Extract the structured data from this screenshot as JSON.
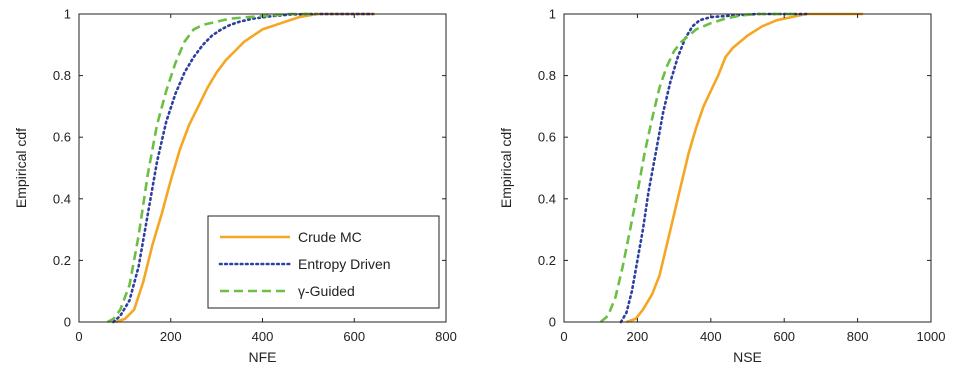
{
  "chart_data": [
    {
      "type": "line",
      "xlabel": "NFE",
      "ylabel": "Empirical cdf",
      "xlim": [
        0,
        800
      ],
      "ylim": [
        0,
        1
      ],
      "xticks": [
        0,
        200,
        400,
        600,
        800
      ],
      "yticks": [
        0,
        0.2,
        0.4,
        0.6,
        0.8,
        1
      ],
      "xtick_labels": [
        "0",
        "200",
        "400",
        "600",
        "800"
      ],
      "ytick_labels": [
        "0",
        "0.2",
        "0.4",
        "0.6",
        "0.8",
        "1"
      ],
      "grid": false,
      "legend_position": "bottom-right",
      "series": [
        {
          "name": "Crude MC",
          "color": "#f5a623",
          "dash": "solid",
          "points": [
            [
              80,
              0
            ],
            [
              100,
              0.01
            ],
            [
              120,
              0.04
            ],
            [
              140,
              0.13
            ],
            [
              160,
              0.25
            ],
            [
              180,
              0.35
            ],
            [
              200,
              0.46
            ],
            [
              220,
              0.56
            ],
            [
              240,
              0.64
            ],
            [
              260,
              0.7
            ],
            [
              280,
              0.76
            ],
            [
              300,
              0.81
            ],
            [
              320,
              0.85
            ],
            [
              340,
              0.88
            ],
            [
              360,
              0.91
            ],
            [
              380,
              0.93
            ],
            [
              400,
              0.95
            ],
            [
              440,
              0.97
            ],
            [
              480,
              0.99
            ],
            [
              520,
              1.0
            ],
            [
              645,
              1.0
            ]
          ]
        },
        {
          "name": "Entropy Driven",
          "color": "#2e3f9e",
          "dash": "dotted",
          "points": [
            [
              75,
              0
            ],
            [
              90,
              0.02
            ],
            [
              110,
              0.07
            ],
            [
              130,
              0.18
            ],
            [
              150,
              0.35
            ],
            [
              170,
              0.52
            ],
            [
              190,
              0.65
            ],
            [
              210,
              0.74
            ],
            [
              230,
              0.81
            ],
            [
              250,
              0.86
            ],
            [
              270,
              0.9
            ],
            [
              290,
              0.93
            ],
            [
              310,
              0.95
            ],
            [
              330,
              0.965
            ],
            [
              350,
              0.975
            ],
            [
              380,
              0.985
            ],
            [
              420,
              0.993
            ],
            [
              460,
              0.998
            ],
            [
              500,
              1.0
            ],
            [
              640,
              1.0
            ]
          ]
        },
        {
          "name": "γ-Guided",
          "color": "#6cbf45",
          "dash": "dashed",
          "points": [
            [
              62,
              0
            ],
            [
              75,
              0.01
            ],
            [
              90,
              0.04
            ],
            [
              110,
              0.12
            ],
            [
              130,
              0.28
            ],
            [
              150,
              0.48
            ],
            [
              170,
              0.64
            ],
            [
              190,
              0.75
            ],
            [
              210,
              0.84
            ],
            [
              230,
              0.91
            ],
            [
              250,
              0.95
            ],
            [
              270,
              0.965
            ],
            [
              300,
              0.975
            ],
            [
              330,
              0.985
            ],
            [
              370,
              0.99
            ],
            [
              420,
              0.995
            ],
            [
              460,
              1.0
            ],
            [
              520,
              1.0
            ]
          ]
        }
      ]
    },
    {
      "type": "line",
      "xlabel": "NSE",
      "ylabel": "Empirical cdf",
      "xlim": [
        0,
        1000
      ],
      "ylim": [
        0,
        1
      ],
      "xticks": [
        0,
        200,
        400,
        600,
        800,
        1000
      ],
      "yticks": [
        0,
        0.2,
        0.4,
        0.6,
        0.8,
        1
      ],
      "xtick_labels": [
        "0",
        "200",
        "400",
        "600",
        "800",
        "1000"
      ],
      "ytick_labels": [
        "0",
        "0.2",
        "0.4",
        "0.6",
        "0.8",
        "1"
      ],
      "grid": false,
      "series": [
        {
          "name": "Crude MC",
          "color": "#f5a623",
          "dash": "solid",
          "points": [
            [
              170,
              0
            ],
            [
              195,
              0.01
            ],
            [
              215,
              0.04
            ],
            [
              240,
              0.09
            ],
            [
              260,
              0.15
            ],
            [
              280,
              0.25
            ],
            [
              300,
              0.35
            ],
            [
              320,
              0.45
            ],
            [
              340,
              0.55
            ],
            [
              360,
              0.63
            ],
            [
              380,
              0.7
            ],
            [
              400,
              0.75
            ],
            [
              420,
              0.8
            ],
            [
              440,
              0.86
            ],
            [
              460,
              0.89
            ],
            [
              480,
              0.91
            ],
            [
              500,
              0.93
            ],
            [
              540,
              0.96
            ],
            [
              580,
              0.98
            ],
            [
              620,
              0.99
            ],
            [
              660,
              1.0
            ],
            [
              815,
              1.0
            ]
          ]
        },
        {
          "name": "Entropy Driven",
          "color": "#2e3f9e",
          "dash": "dotted",
          "points": [
            [
              155,
              0
            ],
            [
              170,
              0.03
            ],
            [
              185,
              0.1
            ],
            [
              200,
              0.2
            ],
            [
              215,
              0.3
            ],
            [
              230,
              0.42
            ],
            [
              250,
              0.55
            ],
            [
              270,
              0.68
            ],
            [
              290,
              0.78
            ],
            [
              310,
              0.86
            ],
            [
              330,
              0.92
            ],
            [
              350,
              0.96
            ],
            [
              370,
              0.98
            ],
            [
              400,
              0.99
            ],
            [
              460,
              0.995
            ],
            [
              530,
              1.0
            ],
            [
              660,
              1.0
            ]
          ]
        },
        {
          "name": "γ-Guided",
          "color": "#6cbf45",
          "dash": "dashed",
          "points": [
            [
              100,
              0
            ],
            [
              120,
              0.02
            ],
            [
              140,
              0.08
            ],
            [
              160,
              0.18
            ],
            [
              180,
              0.3
            ],
            [
              200,
              0.42
            ],
            [
              220,
              0.55
            ],
            [
              240,
              0.66
            ],
            [
              260,
              0.76
            ],
            [
              280,
              0.83
            ],
            [
              300,
              0.88
            ],
            [
              320,
              0.91
            ],
            [
              340,
              0.93
            ],
            [
              360,
              0.95
            ],
            [
              400,
              0.97
            ],
            [
              440,
              0.985
            ],
            [
              480,
              0.995
            ],
            [
              530,
              1.0
            ],
            [
              640,
              1.0
            ]
          ]
        }
      ]
    }
  ]
}
